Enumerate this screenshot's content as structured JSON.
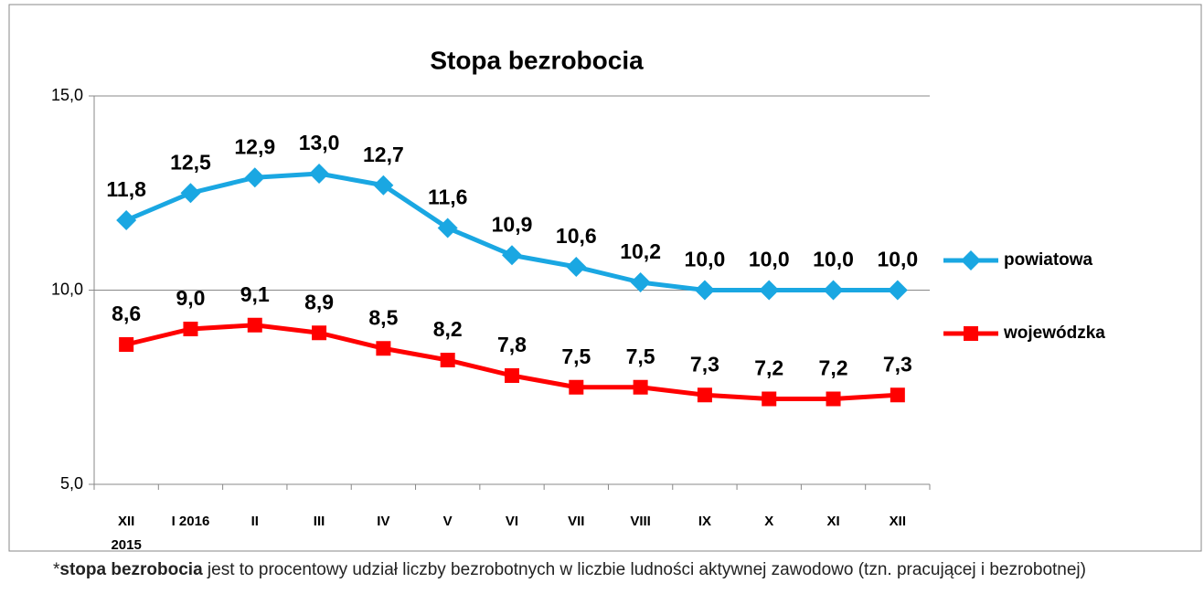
{
  "chart_data": {
    "type": "line",
    "title": "Stopa bezrobocia",
    "categories": [
      "XII\n2015",
      "I 2016",
      "II",
      "III",
      "IV",
      "V",
      "VI",
      "VII",
      "VIII",
      "IX",
      "X",
      "XI",
      "XII"
    ],
    "series": [
      {
        "name": "powiatowa",
        "color": "#1aa7e2",
        "marker": "diamond",
        "values": [
          11.8,
          12.5,
          12.9,
          13.0,
          12.7,
          11.6,
          10.9,
          10.6,
          10.2,
          10.0,
          10.0,
          10.0,
          10.0
        ],
        "value_labels": [
          "11,8",
          "12,5",
          "12,9",
          "13,0",
          "12,7",
          "11,6",
          "10,9",
          "10,6",
          "10,2",
          "10,0",
          "10,0",
          "10,0",
          "10,0"
        ]
      },
      {
        "name": "wojewódzka",
        "color": "#ff0000",
        "marker": "square",
        "values": [
          8.6,
          9.0,
          9.1,
          8.9,
          8.5,
          8.2,
          7.8,
          7.5,
          7.5,
          7.3,
          7.2,
          7.2,
          7.3
        ],
        "value_labels": [
          "8,6",
          "9,0",
          "9,1",
          "8,9",
          "8,5",
          "8,2",
          "7,8",
          "7,5",
          "7,5",
          "7,3",
          "7,2",
          "7,2",
          "7,3"
        ]
      }
    ],
    "ylim": [
      5,
      15
    ],
    "yticks": [
      {
        "value": 5,
        "label": "5,0"
      },
      {
        "value": 10,
        "label": "10,0"
      },
      {
        "value": 15,
        "label": "15,0"
      }
    ],
    "grid": true,
    "legend": "right"
  },
  "footnote": {
    "prefix": "*",
    "term": "stopa bezrobocia",
    "text": " jest to procentowy udział liczby bezrobotnych w liczbie ludności  aktywnej zawodowo (tzn. pracującej i bezrobotnej)"
  }
}
